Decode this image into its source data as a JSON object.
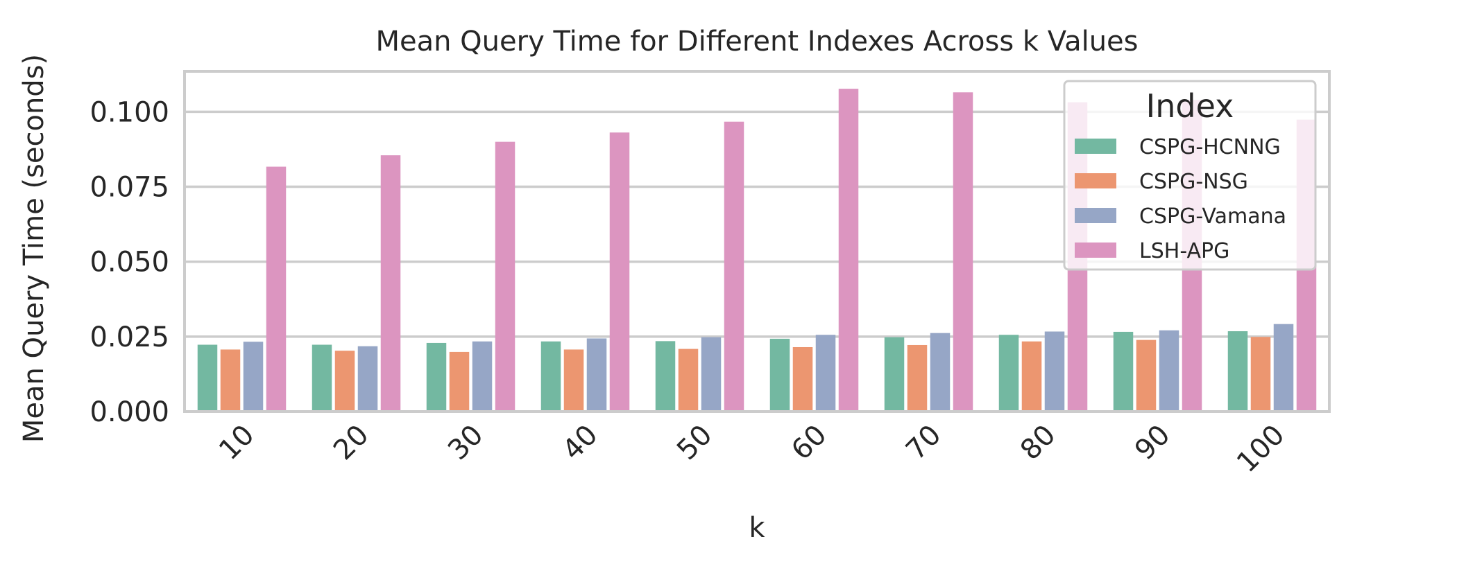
{
  "chart_data": {
    "type": "bar",
    "title": "Mean Query Time for Different Indexes Across k Values",
    "xlabel": "k",
    "ylabel": "Mean Query Time (seconds)",
    "categories": [
      "10",
      "20",
      "30",
      "40",
      "50",
      "60",
      "70",
      "80",
      "90",
      "100"
    ],
    "y_ticks": [
      "0.000",
      "0.025",
      "0.050",
      "0.075",
      "0.100"
    ],
    "ylim": [
      0,
      0.1135
    ],
    "grid": true,
    "legend": {
      "title": "Index",
      "placement": "top-right"
    },
    "series": [
      {
        "name": "CSPG-HCNNG",
        "color": "#73b8a1",
        "values": [
          0.0223,
          0.0223,
          0.0229,
          0.0234,
          0.0235,
          0.0243,
          0.0248,
          0.0256,
          0.0266,
          0.0268
        ]
      },
      {
        "name": "CSPG-NSG",
        "color": "#ec9670",
        "values": [
          0.0207,
          0.0203,
          0.0199,
          0.0207,
          0.0209,
          0.0215,
          0.0222,
          0.0234,
          0.0239,
          0.0249
        ]
      },
      {
        "name": "CSPG-Vamana",
        "color": "#96a6c6",
        "values": [
          0.0233,
          0.0218,
          0.0234,
          0.0244,
          0.0248,
          0.0256,
          0.0262,
          0.0267,
          0.0271,
          0.0292
        ]
      },
      {
        "name": "LSH-APG",
        "color": "#dc95c0",
        "values": [
          0.0817,
          0.0855,
          0.09,
          0.0931,
          0.0967,
          0.1077,
          0.1065,
          0.1032,
          0.104,
          0.0974
        ]
      }
    ]
  }
}
